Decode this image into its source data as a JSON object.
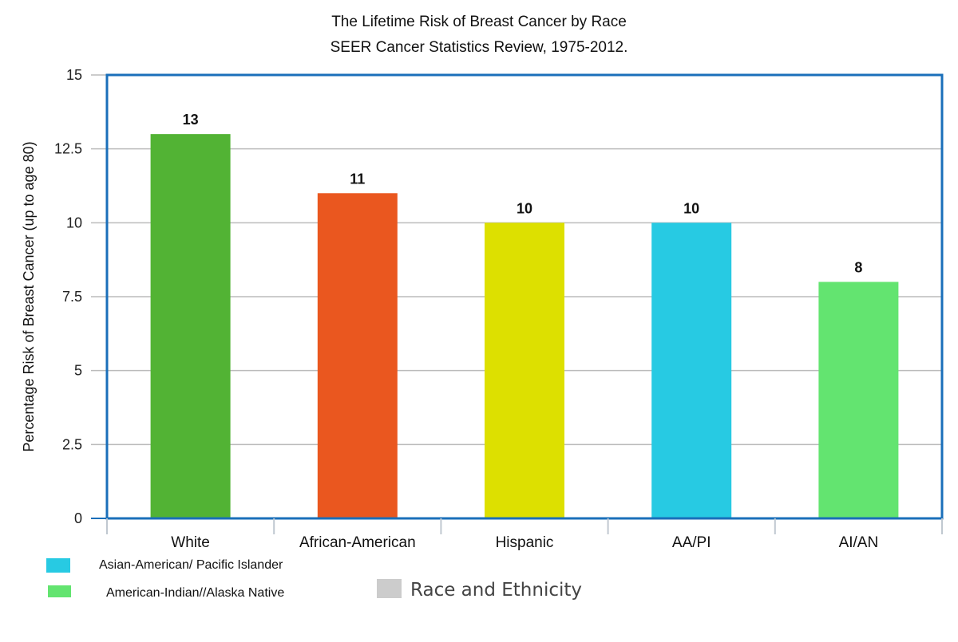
{
  "chart_data": {
    "type": "bar",
    "title": "The Lifetime Risk of Breast Cancer by Race",
    "subtitle": "SEER Cancer Statistics Review, 1975-2012.",
    "xlabel": "Race and Ethnicity",
    "ylabel": "Percentage Risk of Breast Cancer (up to age 80)",
    "ylim": [
      0,
      15
    ],
    "yticks": [
      0,
      2.5,
      5,
      7.5,
      10,
      12.5,
      15
    ],
    "ytick_labels": [
      "0",
      "2.5",
      "5",
      "7.5",
      "10",
      "12.5",
      "15"
    ],
    "grid": true,
    "categories": [
      "White",
      "African-American",
      "Hispanic",
      "AA/PI",
      "AI/AN"
    ],
    "values": [
      13,
      11,
      10,
      10,
      8
    ],
    "data_labels": [
      "13",
      "11",
      "10",
      "10",
      "8"
    ],
    "bar_colors": [
      "#52b334",
      "#ea571f",
      "#dde000",
      "#27cae3",
      "#63e470"
    ],
    "legend": [
      {
        "label": "Asian-American/ Pacific Islander",
        "color": "#27cae3"
      },
      {
        "label": "American-Indian//Alaska Native",
        "color": "#63e470"
      }
    ],
    "xlabel_swatch_color": "#cccccc",
    "frame_color": "#1a6fba",
    "grid_color": "#bbbbbb"
  }
}
